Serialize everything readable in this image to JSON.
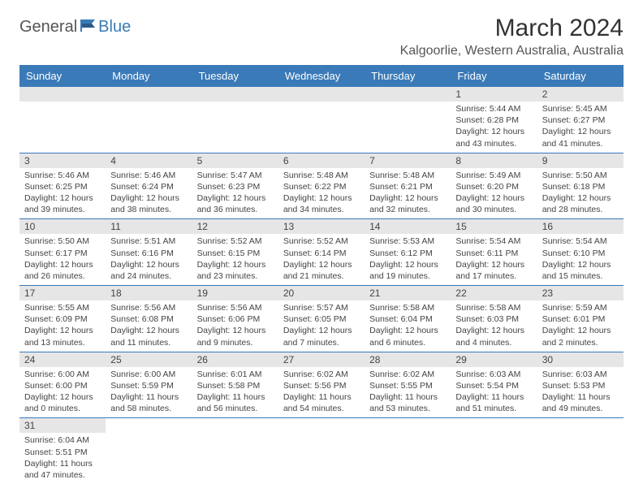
{
  "logo": {
    "text_general": "General",
    "text_blue": "Blue",
    "accent_color": "#3a7ab8"
  },
  "title": "March 2024",
  "location": "Kalgoorlie, Western Australia, Australia",
  "colors": {
    "header_bg": "#3a7ab8",
    "header_text": "#ffffff",
    "daynum_bg": "#e6e6e6",
    "border": "#3a7ab8"
  },
  "weekdays": [
    "Sunday",
    "Monday",
    "Tuesday",
    "Wednesday",
    "Thursday",
    "Friday",
    "Saturday"
  ],
  "weeks": [
    [
      null,
      null,
      null,
      null,
      null,
      {
        "n": "1",
        "sr": "Sunrise: 5:44 AM",
        "ss": "Sunset: 6:28 PM",
        "d1": "Daylight: 12 hours",
        "d2": "and 43 minutes."
      },
      {
        "n": "2",
        "sr": "Sunrise: 5:45 AM",
        "ss": "Sunset: 6:27 PM",
        "d1": "Daylight: 12 hours",
        "d2": "and 41 minutes."
      }
    ],
    [
      {
        "n": "3",
        "sr": "Sunrise: 5:46 AM",
        "ss": "Sunset: 6:25 PM",
        "d1": "Daylight: 12 hours",
        "d2": "and 39 minutes."
      },
      {
        "n": "4",
        "sr": "Sunrise: 5:46 AM",
        "ss": "Sunset: 6:24 PM",
        "d1": "Daylight: 12 hours",
        "d2": "and 38 minutes."
      },
      {
        "n": "5",
        "sr": "Sunrise: 5:47 AM",
        "ss": "Sunset: 6:23 PM",
        "d1": "Daylight: 12 hours",
        "d2": "and 36 minutes."
      },
      {
        "n": "6",
        "sr": "Sunrise: 5:48 AM",
        "ss": "Sunset: 6:22 PM",
        "d1": "Daylight: 12 hours",
        "d2": "and 34 minutes."
      },
      {
        "n": "7",
        "sr": "Sunrise: 5:48 AM",
        "ss": "Sunset: 6:21 PM",
        "d1": "Daylight: 12 hours",
        "d2": "and 32 minutes."
      },
      {
        "n": "8",
        "sr": "Sunrise: 5:49 AM",
        "ss": "Sunset: 6:20 PM",
        "d1": "Daylight: 12 hours",
        "d2": "and 30 minutes."
      },
      {
        "n": "9",
        "sr": "Sunrise: 5:50 AM",
        "ss": "Sunset: 6:18 PM",
        "d1": "Daylight: 12 hours",
        "d2": "and 28 minutes."
      }
    ],
    [
      {
        "n": "10",
        "sr": "Sunrise: 5:50 AM",
        "ss": "Sunset: 6:17 PM",
        "d1": "Daylight: 12 hours",
        "d2": "and 26 minutes."
      },
      {
        "n": "11",
        "sr": "Sunrise: 5:51 AM",
        "ss": "Sunset: 6:16 PM",
        "d1": "Daylight: 12 hours",
        "d2": "and 24 minutes."
      },
      {
        "n": "12",
        "sr": "Sunrise: 5:52 AM",
        "ss": "Sunset: 6:15 PM",
        "d1": "Daylight: 12 hours",
        "d2": "and 23 minutes."
      },
      {
        "n": "13",
        "sr": "Sunrise: 5:52 AM",
        "ss": "Sunset: 6:14 PM",
        "d1": "Daylight: 12 hours",
        "d2": "and 21 minutes."
      },
      {
        "n": "14",
        "sr": "Sunrise: 5:53 AM",
        "ss": "Sunset: 6:12 PM",
        "d1": "Daylight: 12 hours",
        "d2": "and 19 minutes."
      },
      {
        "n": "15",
        "sr": "Sunrise: 5:54 AM",
        "ss": "Sunset: 6:11 PM",
        "d1": "Daylight: 12 hours",
        "d2": "and 17 minutes."
      },
      {
        "n": "16",
        "sr": "Sunrise: 5:54 AM",
        "ss": "Sunset: 6:10 PM",
        "d1": "Daylight: 12 hours",
        "d2": "and 15 minutes."
      }
    ],
    [
      {
        "n": "17",
        "sr": "Sunrise: 5:55 AM",
        "ss": "Sunset: 6:09 PM",
        "d1": "Daylight: 12 hours",
        "d2": "and 13 minutes."
      },
      {
        "n": "18",
        "sr": "Sunrise: 5:56 AM",
        "ss": "Sunset: 6:08 PM",
        "d1": "Daylight: 12 hours",
        "d2": "and 11 minutes."
      },
      {
        "n": "19",
        "sr": "Sunrise: 5:56 AM",
        "ss": "Sunset: 6:06 PM",
        "d1": "Daylight: 12 hours",
        "d2": "and 9 minutes."
      },
      {
        "n": "20",
        "sr": "Sunrise: 5:57 AM",
        "ss": "Sunset: 6:05 PM",
        "d1": "Daylight: 12 hours",
        "d2": "and 7 minutes."
      },
      {
        "n": "21",
        "sr": "Sunrise: 5:58 AM",
        "ss": "Sunset: 6:04 PM",
        "d1": "Daylight: 12 hours",
        "d2": "and 6 minutes."
      },
      {
        "n": "22",
        "sr": "Sunrise: 5:58 AM",
        "ss": "Sunset: 6:03 PM",
        "d1": "Daylight: 12 hours",
        "d2": "and 4 minutes."
      },
      {
        "n": "23",
        "sr": "Sunrise: 5:59 AM",
        "ss": "Sunset: 6:01 PM",
        "d1": "Daylight: 12 hours",
        "d2": "and 2 minutes."
      }
    ],
    [
      {
        "n": "24",
        "sr": "Sunrise: 6:00 AM",
        "ss": "Sunset: 6:00 PM",
        "d1": "Daylight: 12 hours",
        "d2": "and 0 minutes."
      },
      {
        "n": "25",
        "sr": "Sunrise: 6:00 AM",
        "ss": "Sunset: 5:59 PM",
        "d1": "Daylight: 11 hours",
        "d2": "and 58 minutes."
      },
      {
        "n": "26",
        "sr": "Sunrise: 6:01 AM",
        "ss": "Sunset: 5:58 PM",
        "d1": "Daylight: 11 hours",
        "d2": "and 56 minutes."
      },
      {
        "n": "27",
        "sr": "Sunrise: 6:02 AM",
        "ss": "Sunset: 5:56 PM",
        "d1": "Daylight: 11 hours",
        "d2": "and 54 minutes."
      },
      {
        "n": "28",
        "sr": "Sunrise: 6:02 AM",
        "ss": "Sunset: 5:55 PM",
        "d1": "Daylight: 11 hours",
        "d2": "and 53 minutes."
      },
      {
        "n": "29",
        "sr": "Sunrise: 6:03 AM",
        "ss": "Sunset: 5:54 PM",
        "d1": "Daylight: 11 hours",
        "d2": "and 51 minutes."
      },
      {
        "n": "30",
        "sr": "Sunrise: 6:03 AM",
        "ss": "Sunset: 5:53 PM",
        "d1": "Daylight: 11 hours",
        "d2": "and 49 minutes."
      }
    ],
    [
      {
        "n": "31",
        "sr": "Sunrise: 6:04 AM",
        "ss": "Sunset: 5:51 PM",
        "d1": "Daylight: 11 hours",
        "d2": "and 47 minutes."
      },
      null,
      null,
      null,
      null,
      null,
      null
    ]
  ]
}
